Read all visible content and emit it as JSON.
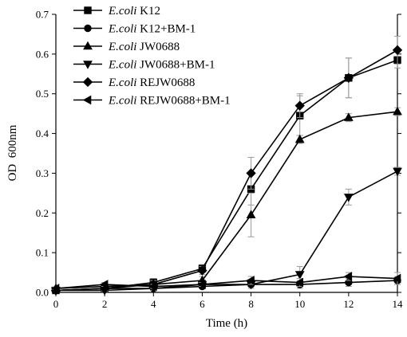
{
  "chart_data": {
    "type": "line",
    "xlabel": "Time (h)",
    "ylabel": "OD  600nm",
    "xlim": [
      0,
      14
    ],
    "ylim": [
      0,
      0.7
    ],
    "x_ticks": [
      "0",
      "2",
      "4",
      "6",
      "8",
      "10",
      "12",
      "14"
    ],
    "y_ticks": [
      "0.0",
      "0.1",
      "0.2",
      "0.3",
      "0.4",
      "0.5",
      "0.6",
      "0.7"
    ],
    "grid": false,
    "legend_position": "top-left",
    "x": [
      0,
      2,
      4,
      6,
      8,
      10,
      12,
      14
    ],
    "series": [
      {
        "name": "K12",
        "name_italic": "E.coli",
        "marker": "square",
        "values": [
          0.005,
          0.01,
          0.025,
          0.06,
          0.26,
          0.445,
          0.54,
          0.585
        ],
        "errors": [
          0.003,
          0.005,
          0.01,
          0.01,
          0.04,
          0.05,
          0.05,
          0.02
        ]
      },
      {
        "name": "K12+BM-1",
        "name_italic": "E.coli",
        "marker": "circle",
        "values": [
          0.005,
          0.01,
          0.01,
          0.015,
          0.02,
          0.02,
          0.025,
          0.03
        ],
        "errors": [
          0.003,
          0.005,
          0.005,
          0.005,
          0.005,
          0.01,
          0.01,
          0.01
        ]
      },
      {
        "name": "JW0688",
        "name_italic": "E.coli",
        "marker": "triangle-up",
        "values": [
          0.01,
          0.015,
          0.02,
          0.03,
          0.195,
          0.385,
          0.44,
          0.455
        ],
        "errors": [
          0.003,
          0.005,
          0.01,
          0.01,
          0.055,
          0.01,
          0.01,
          0.01
        ]
      },
      {
        "name": "JW0688+BM-1",
        "name_italic": "E.coli",
        "marker": "triangle-down",
        "values": [
          0.005,
          0.005,
          0.01,
          0.02,
          0.02,
          0.045,
          0.24,
          0.305
        ],
        "errors": [
          0.003,
          0.003,
          0.005,
          0.005,
          0.01,
          0.02,
          0.02,
          0.01
        ]
      },
      {
        "name": "REJW0688",
        "name_italic": "E.coli",
        "marker": "diamond",
        "values": [
          0.005,
          0.01,
          0.02,
          0.055,
          0.3,
          0.47,
          0.54,
          0.61
        ],
        "errors": [
          0.003,
          0.005,
          0.01,
          0.01,
          0.04,
          0.03,
          0.05,
          0.035
        ]
      },
      {
        "name": "REJW0688+BM-1",
        "name_italic": "E.coli",
        "marker": "triangle-left",
        "values": [
          0.01,
          0.02,
          0.015,
          0.02,
          0.03,
          0.025,
          0.04,
          0.035
        ],
        "errors": [
          0.003,
          0.005,
          0.005,
          0.005,
          0.01,
          0.01,
          0.01,
          0.015
        ]
      }
    ]
  }
}
